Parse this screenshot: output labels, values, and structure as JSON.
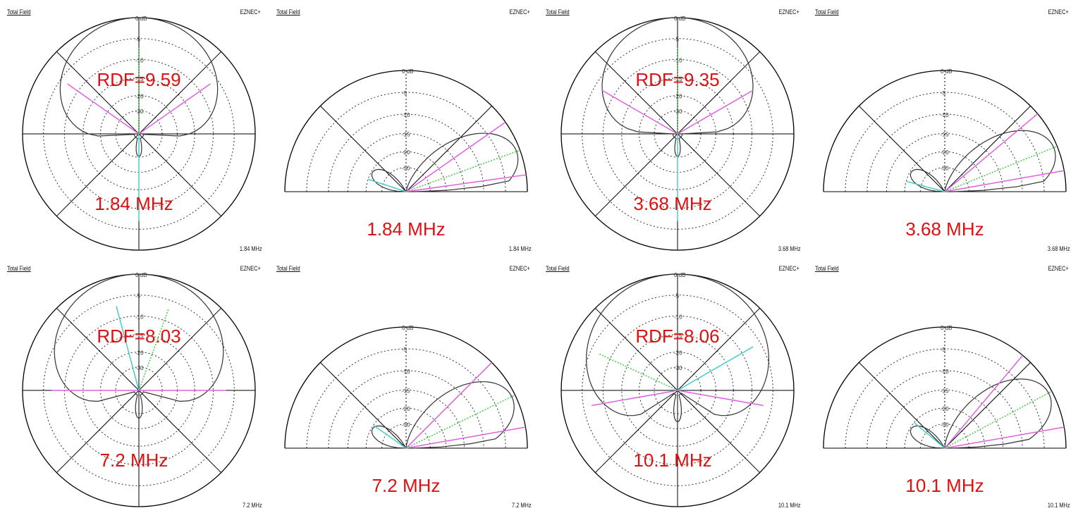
{
  "header": {
    "left_label": "Total Field",
    "right_label": "EZNEC+"
  },
  "colors": {
    "accent": "#dd1111",
    "magenta": "#e060e0",
    "green": "#44cc44",
    "cyan": "#44cccc",
    "trace": "#333333"
  },
  "panels": [
    {
      "kind": "azimuth",
      "rdf": "RDF=9.59",
      "freq_label": "1.84 MHz",
      "footer": "1.84 MHz"
    },
    {
      "kind": "elevation",
      "freq_label": "1.84 MHz",
      "footer": "1.84 MHz"
    },
    {
      "kind": "azimuth",
      "rdf": "RDF=9.35",
      "freq_label": "3.68 MHz",
      "footer": "3.68 MHz"
    },
    {
      "kind": "elevation",
      "freq_label": "3.68 MHz",
      "footer": "3.68 MHz"
    },
    {
      "kind": "azimuth",
      "rdf": "RDF=8.03",
      "freq_label": "7.2 MHz",
      "footer": "7.2 MHz"
    },
    {
      "kind": "elevation",
      "freq_label": "7.2 MHz",
      "footer": "7.2 MHz"
    },
    {
      "kind": "azimuth",
      "rdf": "RDF=8.06",
      "freq_label": "10.1 MHz",
      "footer": "10.1 MHz"
    },
    {
      "kind": "elevation",
      "freq_label": "10.1 MHz",
      "footer": "10.1 MHz"
    }
  ],
  "chart_data": [
    {
      "type": "polar-azimuth",
      "freq": "1.84 MHz",
      "rdf": 9.59,
      "ring_labels": [
        "0 dB",
        "-5",
        "-10",
        "-15",
        "-20",
        "-30"
      ],
      "main_lobe_width_deg": 150,
      "back_lobe_db": -17,
      "lines": [
        {
          "color": "magenta",
          "angles": [
            55,
            -55
          ]
        },
        {
          "color": "green",
          "angles": [
            0
          ]
        },
        {
          "color": "cyan",
          "angles": [
            180
          ]
        }
      ]
    },
    {
      "type": "polar-elevation",
      "freq": "1.84 MHz",
      "ring_labels": [
        "0 dB",
        "-5",
        "-10",
        "-15",
        "-20",
        "-30"
      ],
      "main_lobe_elev_deg": 20,
      "lines": [
        {
          "color": "magenta",
          "angles": [
            35,
            8
          ]
        },
        {
          "color": "green",
          "angles": [
            20
          ]
        },
        {
          "color": "cyan",
          "angles": [
            162
          ]
        }
      ]
    },
    {
      "type": "polar-azimuth",
      "freq": "3.68 MHz",
      "rdf": 9.35,
      "ring_labels": [
        "0 dB",
        "-5",
        "-10",
        "-15",
        "-20",
        "-30"
      ],
      "main_lobe_width_deg": 140,
      "back_lobe_db": -17,
      "lines": [
        {
          "color": "magenta",
          "angles": [
            60,
            -60
          ]
        },
        {
          "color": "green",
          "angles": [
            0
          ]
        },
        {
          "color": "cyan",
          "angles": [
            180
          ]
        }
      ]
    },
    {
      "type": "polar-elevation",
      "freq": "3.68 MHz",
      "ring_labels": [
        "0 dB",
        "-5",
        "-10",
        "-15",
        "-20",
        "-30"
      ],
      "main_lobe_elev_deg": 22,
      "lines": [
        {
          "color": "magenta",
          "angles": [
            40,
            10
          ]
        },
        {
          "color": "green",
          "angles": [
            22
          ]
        },
        {
          "color": "cyan",
          "angles": [
            165
          ]
        }
      ]
    },
    {
      "type": "polar-azimuth",
      "freq": "7.2 MHz",
      "rdf": 8.03,
      "ring_labels": [
        "0 dB",
        "-5",
        "-10",
        "-15",
        "-20",
        "-30"
      ],
      "main_lobe_width_deg": 170,
      "back_lobe_db": -14,
      "lines": [
        {
          "color": "magenta",
          "angles": [
            90,
            -90
          ]
        },
        {
          "color": "green",
          "angles": [
            20
          ]
        },
        {
          "color": "cyan",
          "angles": [
            -15
          ]
        }
      ]
    },
    {
      "type": "polar-elevation",
      "freq": "7.2 MHz",
      "ring_labels": [
        "0 dB",
        "-5",
        "-10",
        "-15",
        "-20",
        "-30"
      ],
      "main_lobe_elev_deg": 26,
      "lines": [
        {
          "color": "magenta",
          "angles": [
            45,
            10
          ]
        },
        {
          "color": "green",
          "angles": [
            26
          ]
        },
        {
          "color": "cyan",
          "angles": [
            145
          ]
        }
      ]
    },
    {
      "type": "polar-azimuth",
      "freq": "10.1 MHz",
      "rdf": 8.06,
      "ring_labels": [
        "0 dB",
        "-5",
        "-10",
        "-15",
        "-20",
        "-30"
      ],
      "main_lobe_width_deg": 200,
      "back_lobe_db": -12,
      "lines": [
        {
          "color": "magenta",
          "angles": [
            100,
            -100
          ]
        },
        {
          "color": "green",
          "angles": [
            -65
          ]
        },
        {
          "color": "cyan",
          "angles": [
            60
          ]
        }
      ]
    },
    {
      "type": "polar-elevation",
      "freq": "10.1 MHz",
      "ring_labels": [
        "0 dB",
        "-5",
        "-10",
        "-15",
        "-20",
        "-30"
      ],
      "main_lobe_elev_deg": 28,
      "lines": [
        {
          "color": "magenta",
          "angles": [
            50,
            10
          ]
        },
        {
          "color": "green",
          "angles": [
            28
          ]
        },
        {
          "color": "cyan",
          "angles": [
            140
          ]
        }
      ]
    }
  ]
}
